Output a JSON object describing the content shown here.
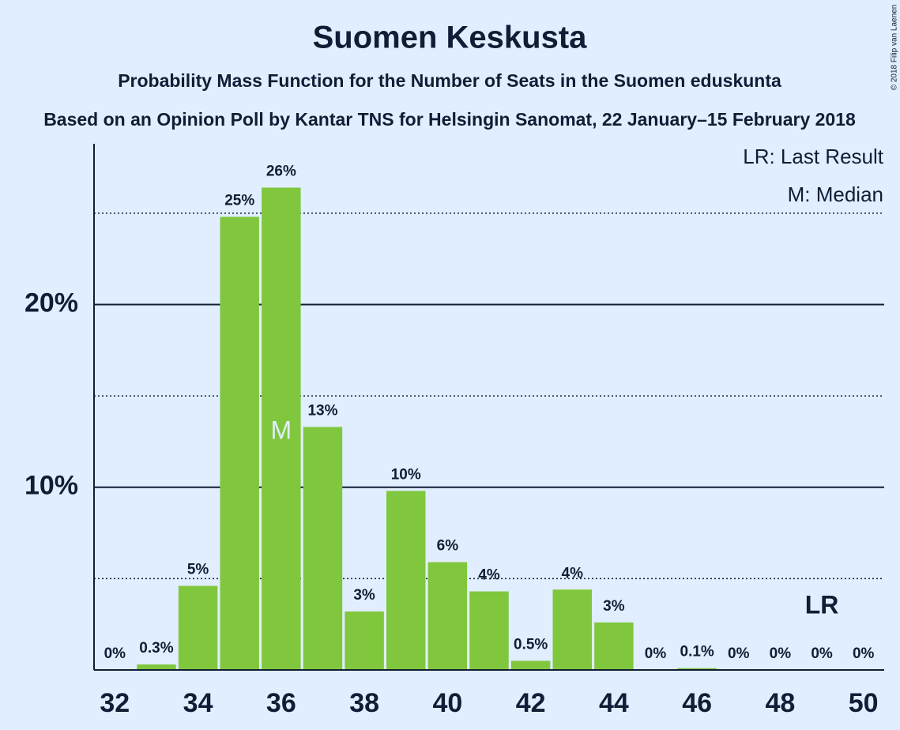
{
  "chart_data": {
    "type": "bar",
    "title": "Suomen Keskusta",
    "subtitle": "Probability Mass Function for the Number of Seats in the Suomen eduskunta",
    "caption": "Based on an Opinion Poll by Kantar TNS for Helsingin Sanomat, 22 January–15 February 2018",
    "copyright": "© 2018 Filip van Laenen",
    "x": [
      32,
      33,
      34,
      35,
      36,
      37,
      38,
      39,
      40,
      41,
      42,
      43,
      44,
      45,
      46,
      47,
      48,
      49,
      50
    ],
    "values": [
      0,
      0.3,
      4.6,
      24.8,
      26.4,
      13.3,
      3.2,
      9.8,
      5.9,
      4.3,
      0.5,
      4.4,
      2.6,
      0,
      0.1,
      0,
      0,
      0,
      0
    ],
    "value_labels": [
      "0%",
      "0.3%",
      "5%",
      "25%",
      "26%",
      "13%",
      "3%",
      "10%",
      "6%",
      "4%",
      "0.5%",
      "4%",
      "3%",
      "0%",
      "0.1%",
      "0%",
      "0%",
      "0%",
      "0%"
    ],
    "color": "#80c73d",
    "xlim": [
      31.5,
      50.5
    ],
    "xticks": [
      32,
      34,
      36,
      38,
      40,
      42,
      44,
      46,
      48,
      50
    ],
    "ylim": [
      0,
      28.8
    ],
    "yticks": [
      {
        "value": 10,
        "label": "10%"
      },
      {
        "value": 20,
        "label": "20%"
      }
    ],
    "minor_yticks": [
      5,
      15,
      25
    ],
    "grid": true,
    "median": {
      "x": 36,
      "label": "M"
    },
    "last_result": {
      "x": 49,
      "label": "LR"
    },
    "legend": [
      "LR: Last Result",
      "M: Median"
    ]
  }
}
